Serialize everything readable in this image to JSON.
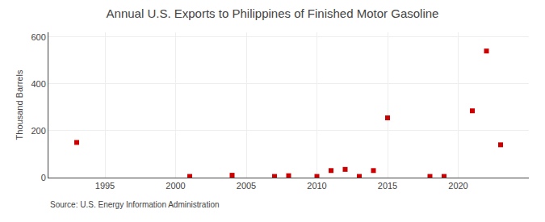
{
  "chart_data": {
    "type": "scatter",
    "title": "Annual U.S. Exports to Philippines of Finished Motor Gasoline",
    "ylabel": "Thousand Barrels",
    "annotations": [
      "Source: U.S. Energy Information Administration"
    ],
    "x": [
      1993,
      2001,
      2004,
      2007,
      2008,
      2010,
      2011,
      2012,
      2013,
      2014,
      2015,
      2018,
      2019,
      2021,
      2022,
      2023
    ],
    "values": [
      150,
      5,
      10,
      5,
      8,
      5,
      30,
      35,
      5,
      30,
      255,
      5,
      5,
      285,
      540,
      140
    ],
    "color": "#cc0000",
    "marker": "square",
    "xlim": [
      1991,
      2025
    ],
    "xticks": [
      1995,
      2000,
      2005,
      2010,
      2015,
      2020
    ],
    "ylim": [
      0,
      620
    ],
    "yticks": [
      0,
      200,
      400,
      600
    ],
    "grid": true
  }
}
